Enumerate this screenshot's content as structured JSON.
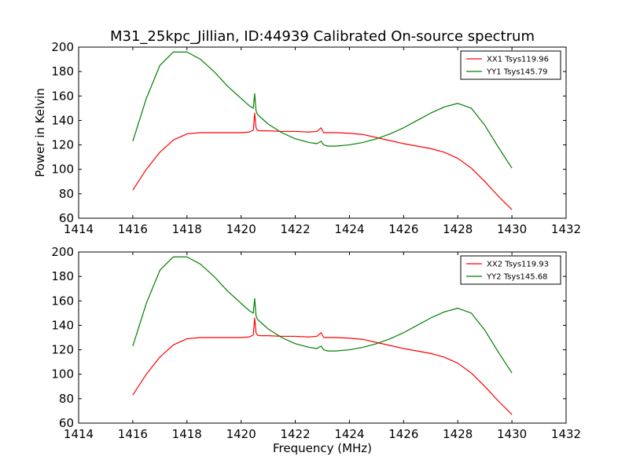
{
  "figure": {
    "title": "M31_25kpc_Jillian, ID:44939 Calibrated On-source spectrum",
    "background": "#ffffff"
  },
  "chart_data": [
    {
      "type": "line",
      "xlabel": "",
      "ylabel": "Power in Kelvin",
      "xlim": [
        1414,
        1432
      ],
      "ylim": [
        60,
        200
      ],
      "x_ticks": [
        "1414",
        "1416",
        "1418",
        "1420",
        "1422",
        "1424",
        "1426",
        "1428",
        "1430",
        "1432"
      ],
      "y_ticks": [
        "60",
        "80",
        "100",
        "120",
        "140",
        "160",
        "180",
        "200"
      ],
      "grid": false,
      "legend_position": "top-right",
      "series": [
        {
          "name": "XX1 Tsys119.96",
          "color": "#ff0000",
          "x": [
            1416.0,
            1416.5,
            1417.0,
            1417.5,
            1418.0,
            1418.5,
            1419.0,
            1419.5,
            1420.0,
            1420.3,
            1420.45,
            1420.5,
            1420.55,
            1420.6,
            1420.7,
            1421.0,
            1421.5,
            1422.0,
            1422.5,
            1422.8,
            1422.95,
            1423.05,
            1423.2,
            1423.5,
            1424.0,
            1424.5,
            1425.0,
            1425.5,
            1426.0,
            1426.5,
            1427.0,
            1427.5,
            1428.0,
            1428.5,
            1429.0,
            1429.5,
            1430.0
          ],
          "values": [
            83,
            100,
            114,
            124,
            129,
            130,
            130,
            130,
            130,
            130.5,
            132,
            146,
            134,
            132,
            131.5,
            131.5,
            131,
            131,
            130.5,
            131,
            134,
            130,
            130,
            130,
            129.5,
            128.5,
            126,
            123.5,
            121,
            119,
            117,
            114,
            109,
            101,
            90,
            78,
            67
          ]
        },
        {
          "name": "YY1 Tsys145.79",
          "color": "#008000",
          "x": [
            1416.0,
            1416.5,
            1417.0,
            1417.5,
            1418.0,
            1418.5,
            1419.0,
            1419.5,
            1420.0,
            1420.3,
            1420.45,
            1420.5,
            1420.55,
            1420.6,
            1420.8,
            1421.0,
            1421.5,
            1422.0,
            1422.5,
            1422.8,
            1422.95,
            1423.05,
            1423.2,
            1423.5,
            1424.0,
            1424.5,
            1425.0,
            1425.5,
            1426.0,
            1426.5,
            1427.0,
            1427.5,
            1428.0,
            1428.5,
            1429.0,
            1429.5,
            1430.0
          ],
          "values": [
            123,
            158,
            185,
            196,
            196,
            190,
            180,
            168,
            158,
            152,
            150,
            162,
            148,
            145,
            141,
            137,
            130,
            125,
            122,
            121,
            123,
            120,
            119,
            119,
            120,
            122,
            125,
            129,
            134,
            140,
            146,
            151,
            154,
            150,
            136,
            118,
            101
          ]
        }
      ]
    },
    {
      "type": "line",
      "xlabel": "Frequency (MHz)",
      "ylabel": "",
      "xlim": [
        1414,
        1432
      ],
      "ylim": [
        60,
        200
      ],
      "x_ticks": [
        "1414",
        "1416",
        "1418",
        "1420",
        "1422",
        "1424",
        "1426",
        "1428",
        "1430",
        "1432"
      ],
      "y_ticks": [
        "60",
        "80",
        "100",
        "120",
        "140",
        "160",
        "180",
        "200"
      ],
      "grid": false,
      "legend_position": "top-right",
      "series": [
        {
          "name": "XX2 Tsys119.93",
          "color": "#ff0000",
          "x": [
            1416.0,
            1416.5,
            1417.0,
            1417.5,
            1418.0,
            1418.5,
            1419.0,
            1419.5,
            1420.0,
            1420.3,
            1420.45,
            1420.5,
            1420.55,
            1420.6,
            1420.7,
            1421.0,
            1421.5,
            1422.0,
            1422.5,
            1422.8,
            1422.95,
            1423.05,
            1423.2,
            1423.5,
            1424.0,
            1424.5,
            1425.0,
            1425.5,
            1426.0,
            1426.5,
            1427.0,
            1427.5,
            1428.0,
            1428.5,
            1429.0,
            1429.5,
            1430.0
          ],
          "values": [
            83,
            100,
            114,
            124,
            129,
            130,
            130,
            130,
            130,
            130.5,
            132,
            146,
            134,
            132,
            131.5,
            131.5,
            131,
            131,
            130.5,
            131,
            134,
            130,
            130,
            130,
            129.5,
            128.5,
            126,
            123.5,
            121,
            119,
            117,
            114,
            109,
            101,
            90,
            78,
            67
          ]
        },
        {
          "name": "YY2 Tsys145.68",
          "color": "#008000",
          "x": [
            1416.0,
            1416.5,
            1417.0,
            1417.5,
            1418.0,
            1418.5,
            1419.0,
            1419.5,
            1420.0,
            1420.3,
            1420.45,
            1420.5,
            1420.55,
            1420.6,
            1420.8,
            1421.0,
            1421.5,
            1422.0,
            1422.5,
            1422.8,
            1422.95,
            1423.05,
            1423.2,
            1423.5,
            1424.0,
            1424.5,
            1425.0,
            1425.5,
            1426.0,
            1426.5,
            1427.0,
            1427.5,
            1428.0,
            1428.5,
            1429.0,
            1429.5,
            1430.0
          ],
          "values": [
            123,
            158,
            185,
            196,
            196,
            190,
            180,
            168,
            158,
            152,
            150,
            162,
            148,
            145,
            141,
            137,
            130,
            125,
            122,
            121,
            123,
            120,
            119,
            119,
            120,
            122,
            125,
            129,
            134,
            140,
            146,
            151,
            154,
            150,
            136,
            118,
            101
          ]
        }
      ]
    }
  ]
}
